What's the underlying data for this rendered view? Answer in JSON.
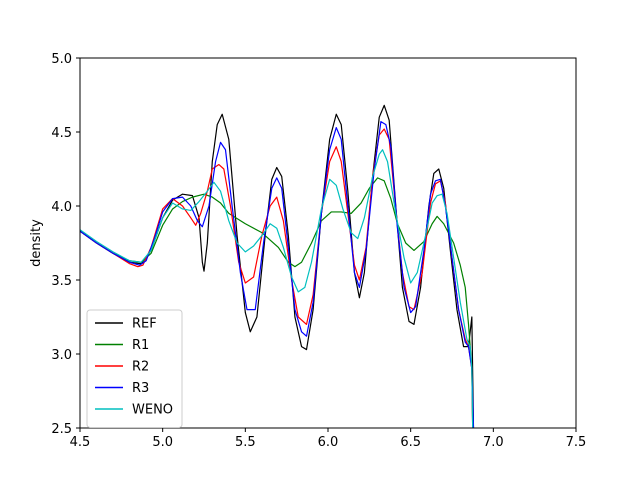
{
  "chart_data": {
    "type": "line",
    "title": "",
    "xlabel": "",
    "ylabel": "density",
    "xlim": [
      4.5,
      7.5
    ],
    "ylim": [
      2.5,
      5.0
    ],
    "xticks": [
      "4.5",
      "5.0",
      "5.5",
      "6.0",
      "6.5",
      "7.0",
      "7.5"
    ],
    "yticks": [
      "2.5",
      "3.0",
      "3.5",
      "4.0",
      "4.5",
      "5.0"
    ],
    "grid": false,
    "legend_position": "lower-left",
    "series": [
      {
        "name": "REF",
        "color": "#000000",
        "points": [
          [
            4.5,
            3.83
          ],
          [
            4.6,
            3.75
          ],
          [
            4.7,
            3.68
          ],
          [
            4.8,
            3.62
          ],
          [
            4.87,
            3.61
          ],
          [
            4.93,
            3.7
          ],
          [
            5.0,
            3.92
          ],
          [
            5.06,
            4.04
          ],
          [
            5.12,
            4.08
          ],
          [
            5.18,
            4.07
          ],
          [
            5.22,
            3.92
          ],
          [
            5.24,
            3.62
          ],
          [
            5.25,
            3.56
          ],
          [
            5.27,
            3.75
          ],
          [
            5.3,
            4.3
          ],
          [
            5.33,
            4.55
          ],
          [
            5.36,
            4.62
          ],
          [
            5.4,
            4.45
          ],
          [
            5.45,
            3.8
          ],
          [
            5.5,
            3.28
          ],
          [
            5.53,
            3.15
          ],
          [
            5.57,
            3.25
          ],
          [
            5.62,
            3.8
          ],
          [
            5.66,
            4.18
          ],
          [
            5.69,
            4.26
          ],
          [
            5.72,
            4.2
          ],
          [
            5.76,
            3.8
          ],
          [
            5.8,
            3.25
          ],
          [
            5.84,
            3.05
          ],
          [
            5.87,
            3.03
          ],
          [
            5.91,
            3.3
          ],
          [
            5.96,
            3.95
          ],
          [
            6.01,
            4.45
          ],
          [
            6.05,
            4.62
          ],
          [
            6.08,
            4.55
          ],
          [
            6.12,
            4.1
          ],
          [
            6.16,
            3.55
          ],
          [
            6.19,
            3.38
          ],
          [
            6.22,
            3.55
          ],
          [
            6.27,
            4.2
          ],
          [
            6.31,
            4.6
          ],
          [
            6.34,
            4.68
          ],
          [
            6.37,
            4.58
          ],
          [
            6.41,
            4.0
          ],
          [
            6.45,
            3.45
          ],
          [
            6.49,
            3.22
          ],
          [
            6.52,
            3.2
          ],
          [
            6.56,
            3.45
          ],
          [
            6.61,
            4.0
          ],
          [
            6.64,
            4.22
          ],
          [
            6.67,
            4.25
          ],
          [
            6.7,
            4.12
          ],
          [
            6.74,
            3.7
          ],
          [
            6.78,
            3.3
          ],
          [
            6.82,
            3.05
          ],
          [
            6.85,
            3.05
          ],
          [
            6.87,
            3.25
          ],
          [
            6.88,
            2.5
          ]
        ]
      },
      {
        "name": "R1",
        "color": "#008000",
        "points": [
          [
            4.5,
            3.83
          ],
          [
            4.6,
            3.75
          ],
          [
            4.7,
            3.68
          ],
          [
            4.8,
            3.63
          ],
          [
            4.87,
            3.62
          ],
          [
            4.93,
            3.68
          ],
          [
            5.0,
            3.87
          ],
          [
            5.06,
            3.98
          ],
          [
            5.12,
            4.03
          ],
          [
            5.18,
            4.06
          ],
          [
            5.25,
            4.08
          ],
          [
            5.3,
            4.06
          ],
          [
            5.35,
            4.02
          ],
          [
            5.4,
            3.95
          ],
          [
            5.5,
            3.88
          ],
          [
            5.6,
            3.82
          ],
          [
            5.7,
            3.72
          ],
          [
            5.76,
            3.62
          ],
          [
            5.8,
            3.59
          ],
          [
            5.84,
            3.62
          ],
          [
            5.9,
            3.75
          ],
          [
            5.96,
            3.9
          ],
          [
            6.02,
            3.96
          ],
          [
            6.08,
            3.96
          ],
          [
            6.14,
            3.95
          ],
          [
            6.2,
            4.02
          ],
          [
            6.25,
            4.12
          ],
          [
            6.3,
            4.19
          ],
          [
            6.34,
            4.17
          ],
          [
            6.38,
            4.05
          ],
          [
            6.42,
            3.88
          ],
          [
            6.47,
            3.75
          ],
          [
            6.52,
            3.7
          ],
          [
            6.58,
            3.76
          ],
          [
            6.63,
            3.88
          ],
          [
            6.66,
            3.93
          ],
          [
            6.7,
            3.88
          ],
          [
            6.76,
            3.75
          ],
          [
            6.8,
            3.6
          ],
          [
            6.83,
            3.45
          ],
          [
            6.85,
            3.2
          ],
          [
            6.87,
            2.9
          ],
          [
            6.875,
            2.5
          ]
        ]
      },
      {
        "name": "R2",
        "color": "#ff0000",
        "points": [
          [
            4.5,
            3.83
          ],
          [
            4.6,
            3.75
          ],
          [
            4.7,
            3.68
          ],
          [
            4.8,
            3.61
          ],
          [
            4.85,
            3.59
          ],
          [
            4.88,
            3.6
          ],
          [
            4.93,
            3.72
          ],
          [
            5.0,
            3.98
          ],
          [
            5.06,
            4.05
          ],
          [
            5.12,
            4.0
          ],
          [
            5.17,
            3.92
          ],
          [
            5.2,
            3.87
          ],
          [
            5.23,
            3.95
          ],
          [
            5.27,
            4.1
          ],
          [
            5.3,
            4.25
          ],
          [
            5.34,
            4.28
          ],
          [
            5.37,
            4.25
          ],
          [
            5.41,
            4.0
          ],
          [
            5.46,
            3.62
          ],
          [
            5.5,
            3.48
          ],
          [
            5.55,
            3.52
          ],
          [
            5.6,
            3.8
          ],
          [
            5.65,
            4.0
          ],
          [
            5.69,
            4.06
          ],
          [
            5.73,
            3.9
          ],
          [
            5.78,
            3.5
          ],
          [
            5.82,
            3.25
          ],
          [
            5.87,
            3.2
          ],
          [
            5.91,
            3.4
          ],
          [
            5.96,
            3.95
          ],
          [
            6.01,
            4.3
          ],
          [
            6.05,
            4.4
          ],
          [
            6.08,
            4.3
          ],
          [
            6.12,
            3.95
          ],
          [
            6.16,
            3.6
          ],
          [
            6.19,
            3.5
          ],
          [
            6.23,
            3.72
          ],
          [
            6.27,
            4.2
          ],
          [
            6.31,
            4.48
          ],
          [
            6.34,
            4.52
          ],
          [
            6.37,
            4.45
          ],
          [
            6.41,
            3.98
          ],
          [
            6.45,
            3.55
          ],
          [
            6.49,
            3.32
          ],
          [
            6.52,
            3.3
          ],
          [
            6.57,
            3.55
          ],
          [
            6.62,
            4.02
          ],
          [
            6.65,
            4.15
          ],
          [
            6.68,
            4.17
          ],
          [
            6.71,
            4.02
          ],
          [
            6.75,
            3.65
          ],
          [
            6.79,
            3.3
          ],
          [
            6.83,
            3.1
          ],
          [
            6.85,
            3.05
          ],
          [
            6.87,
            2.9
          ],
          [
            6.875,
            2.5
          ]
        ]
      },
      {
        "name": "R3",
        "color": "#0000ff",
        "points": [
          [
            4.5,
            3.83
          ],
          [
            4.6,
            3.75
          ],
          [
            4.7,
            3.68
          ],
          [
            4.8,
            3.62
          ],
          [
            4.86,
            3.6
          ],
          [
            4.9,
            3.63
          ],
          [
            4.95,
            3.78
          ],
          [
            5.0,
            3.96
          ],
          [
            5.06,
            4.05
          ],
          [
            5.12,
            4.06
          ],
          [
            5.17,
            4.0
          ],
          [
            5.21,
            3.9
          ],
          [
            5.24,
            3.86
          ],
          [
            5.28,
            4.0
          ],
          [
            5.32,
            4.3
          ],
          [
            5.35,
            4.43
          ],
          [
            5.38,
            4.38
          ],
          [
            5.42,
            4.0
          ],
          [
            5.47,
            3.55
          ],
          [
            5.51,
            3.3
          ],
          [
            5.56,
            3.3
          ],
          [
            5.61,
            3.75
          ],
          [
            5.66,
            4.12
          ],
          [
            5.69,
            4.19
          ],
          [
            5.72,
            4.12
          ],
          [
            5.76,
            3.72
          ],
          [
            5.8,
            3.3
          ],
          [
            5.84,
            3.15
          ],
          [
            5.87,
            3.12
          ],
          [
            5.91,
            3.35
          ],
          [
            5.96,
            3.95
          ],
          [
            6.01,
            4.38
          ],
          [
            6.05,
            4.53
          ],
          [
            6.08,
            4.45
          ],
          [
            6.12,
            4.0
          ],
          [
            6.16,
            3.55
          ],
          [
            6.19,
            3.45
          ],
          [
            6.23,
            3.7
          ],
          [
            6.28,
            4.25
          ],
          [
            6.32,
            4.57
          ],
          [
            6.35,
            4.55
          ],
          [
            6.38,
            4.4
          ],
          [
            6.42,
            3.85
          ],
          [
            6.46,
            3.45
          ],
          [
            6.5,
            3.28
          ],
          [
            6.53,
            3.32
          ],
          [
            6.58,
            3.7
          ],
          [
            6.62,
            4.08
          ],
          [
            6.65,
            4.17
          ],
          [
            6.68,
            4.18
          ],
          [
            6.71,
            4.0
          ],
          [
            6.75,
            3.65
          ],
          [
            6.79,
            3.3
          ],
          [
            6.83,
            3.08
          ],
          [
            6.85,
            3.05
          ],
          [
            6.87,
            2.9
          ],
          [
            6.88,
            2.5
          ]
        ]
      },
      {
        "name": "WENO",
        "color": "#00bfbf",
        "points": [
          [
            4.5,
            3.84
          ],
          [
            4.6,
            3.76
          ],
          [
            4.7,
            3.69
          ],
          [
            4.8,
            3.63
          ],
          [
            4.87,
            3.62
          ],
          [
            4.93,
            3.7
          ],
          [
            5.0,
            3.92
          ],
          [
            5.06,
            4.02
          ],
          [
            5.12,
            3.98
          ],
          [
            5.17,
            3.97
          ],
          [
            5.22,
            4.03
          ],
          [
            5.27,
            4.1
          ],
          [
            5.31,
            4.16
          ],
          [
            5.35,
            4.1
          ],
          [
            5.4,
            3.9
          ],
          [
            5.45,
            3.75
          ],
          [
            5.5,
            3.69
          ],
          [
            5.55,
            3.73
          ],
          [
            5.6,
            3.8
          ],
          [
            5.65,
            3.88
          ],
          [
            5.69,
            3.85
          ],
          [
            5.73,
            3.72
          ],
          [
            5.78,
            3.52
          ],
          [
            5.82,
            3.42
          ],
          [
            5.86,
            3.45
          ],
          [
            5.9,
            3.62
          ],
          [
            5.96,
            3.98
          ],
          [
            6.01,
            4.18
          ],
          [
            6.05,
            4.14
          ],
          [
            6.09,
            3.98
          ],
          [
            6.14,
            3.82
          ],
          [
            6.18,
            3.78
          ],
          [
            6.22,
            3.92
          ],
          [
            6.27,
            4.2
          ],
          [
            6.31,
            4.35
          ],
          [
            6.33,
            4.38
          ],
          [
            6.36,
            4.3
          ],
          [
            6.41,
            3.95
          ],
          [
            6.46,
            3.65
          ],
          [
            6.5,
            3.48
          ],
          [
            6.54,
            3.55
          ],
          [
            6.59,
            3.8
          ],
          [
            6.63,
            4.02
          ],
          [
            6.66,
            4.07
          ],
          [
            6.69,
            4.08
          ],
          [
            6.72,
            3.95
          ],
          [
            6.76,
            3.65
          ],
          [
            6.8,
            3.35
          ],
          [
            6.84,
            3.1
          ],
          [
            6.86,
            3.05
          ],
          [
            6.87,
            2.9
          ],
          [
            6.875,
            2.5
          ]
        ]
      }
    ]
  }
}
